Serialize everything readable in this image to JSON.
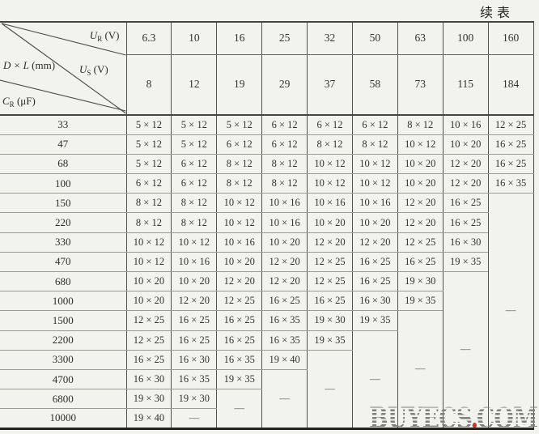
{
  "page": {
    "continued_label": "续表",
    "watermark": {
      "left": "BUYECS",
      "dot": ".",
      "right": "COM"
    }
  },
  "table": {
    "corner": {
      "rated_voltage": {
        "base": "U",
        "sub": "R",
        "unit": " (V)"
      },
      "dimensions": {
        "base": "D × L",
        "unit": " (mm)"
      },
      "surge_voltage": {
        "base": "U",
        "sub": "S",
        "unit": " (V)"
      },
      "capacitance": {
        "base": "C",
        "sub": "R",
        "unit": " (μF)"
      }
    },
    "rated_voltages": [
      "6.3",
      "10",
      "16",
      "25",
      "32",
      "50",
      "63",
      "100",
      "160"
    ],
    "surge_voltages": [
      "8",
      "12",
      "19",
      "29",
      "37",
      "58",
      "73",
      "115",
      "184"
    ],
    "capacitance_rows": [
      "33",
      "47",
      "68",
      "100",
      "150",
      "220",
      "330",
      "470",
      "680",
      "1000",
      "1500",
      "2200",
      "3300",
      "4700",
      "6800",
      "10000"
    ],
    "empty_marker": "—",
    "columns": [
      {
        "rated_voltage": "6.3",
        "values": [
          "5 × 12",
          "5 × 12",
          "5 × 12",
          "6 × 12",
          "8 × 12",
          "8 × 12",
          "10 × 12",
          "10 × 12",
          "10 × 20",
          "10 × 20",
          "12 × 25",
          "12 × 25",
          "16 × 25",
          "16 × 30",
          "19 × 30",
          "19 × 40"
        ]
      },
      {
        "rated_voltage": "10",
        "values": [
          "5 × 12",
          "5 × 12",
          "6 × 12",
          "6 × 12",
          "8 × 12",
          "8 × 12",
          "10 × 12",
          "10 × 16",
          "10 × 20",
          "12 × 20",
          "16 × 25",
          "16 × 25",
          "16 × 30",
          "16 × 35",
          "19 × 30"
        ]
      },
      {
        "rated_voltage": "16",
        "values": [
          "5 × 12",
          "6 × 12",
          "8 × 12",
          "8 × 12",
          "10 × 12",
          "10 × 12",
          "10 × 16",
          "10 × 20",
          "12 × 20",
          "12 × 25",
          "16 × 25",
          "16 × 25",
          "16 × 35",
          "19 × 35"
        ]
      },
      {
        "rated_voltage": "25",
        "values": [
          "6 × 12",
          "6 × 12",
          "8 × 12",
          "8 × 12",
          "10 × 16",
          "10 × 16",
          "10 × 20",
          "12 × 20",
          "12 × 20",
          "16 × 25",
          "16 × 35",
          "16 × 35",
          "19 × 40"
        ]
      },
      {
        "rated_voltage": "32",
        "values": [
          "6 × 12",
          "8 × 12",
          "10 × 12",
          "10 × 12",
          "10 × 16",
          "10 × 20",
          "12 × 20",
          "12 × 25",
          "12 × 25",
          "16 × 25",
          "19 × 30",
          "19 × 35"
        ]
      },
      {
        "rated_voltage": "50",
        "values": [
          "6 × 12",
          "8 × 12",
          "10 × 12",
          "10 × 12",
          "10 × 16",
          "10 × 20",
          "12 × 20",
          "16 × 25",
          "16 × 25",
          "16 × 30",
          "19 × 35"
        ]
      },
      {
        "rated_voltage": "63",
        "values": [
          "8 × 12",
          "10 × 12",
          "10 × 20",
          "10 × 20",
          "12 × 20",
          "12 × 20",
          "12 × 25",
          "16 × 25",
          "19 × 30",
          "19 × 35"
        ]
      },
      {
        "rated_voltage": "100",
        "values": [
          "10 × 16",
          "10 × 20",
          "12 × 20",
          "12 × 20",
          "16 × 25",
          "16 × 25",
          "16 × 30",
          "19 × 35"
        ]
      },
      {
        "rated_voltage": "160",
        "values": [
          "12 × 25",
          "16 × 25",
          "16 × 25",
          "16 × 35"
        ]
      }
    ]
  }
}
